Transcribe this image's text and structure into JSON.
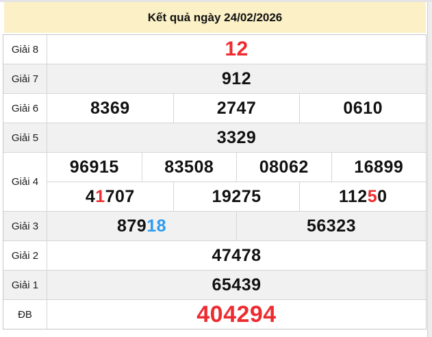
{
  "page": {
    "title": "Kết quả ngày 24/02/2026"
  },
  "colors": {
    "highlight_red": "#ed2c30",
    "highlight_blue": "#2d9bf0",
    "header_bg": "#fbf0c6",
    "alt_row_bg": "#f1f1f1",
    "row_bg": "#ffffff",
    "border_outer": "#c6c6c6",
    "border_inner": "#d5d5d5",
    "number_color": "#111111"
  },
  "results_table": {
    "rows": [
      {
        "label": "Giải 8",
        "size": "lg",
        "lines": [
          [
            [
              {
                "text": "12",
                "color": "highlight_red"
              }
            ]
          ]
        ]
      },
      {
        "label": "Giải 7",
        "lines": [
          [
            [
              {
                "text": "912"
              }
            ]
          ]
        ]
      },
      {
        "label": "Giải 6",
        "lines": [
          [
            [
              {
                "text": "8369"
              }
            ],
            [
              {
                "text": "2747"
              }
            ],
            [
              {
                "text": "0610"
              }
            ]
          ]
        ]
      },
      {
        "label": "Giải 5",
        "lines": [
          [
            [
              {
                "text": "3329"
              }
            ]
          ]
        ]
      },
      {
        "label": "Giải 4",
        "lines": [
          [
            [
              {
                "text": "96915"
              }
            ],
            [
              {
                "text": "83508"
              }
            ],
            [
              {
                "text": "08062"
              }
            ],
            [
              {
                "text": "16899"
              }
            ]
          ],
          [
            [
              {
                "text": "4"
              },
              {
                "text": "1",
                "color": "highlight_red"
              },
              {
                "text": "707"
              }
            ],
            [
              {
                "text": "19275"
              }
            ],
            [
              {
                "text": "112"
              },
              {
                "text": "5",
                "color": "highlight_red"
              },
              {
                "text": "0"
              }
            ]
          ]
        ]
      },
      {
        "label": "Giải 3",
        "lines": [
          [
            [
              {
                "text": "879"
              },
              {
                "text": "18",
                "color": "highlight_blue"
              }
            ],
            [
              {
                "text": "56323"
              }
            ]
          ]
        ]
      },
      {
        "label": "Giải 2",
        "lines": [
          [
            [
              {
                "text": "47478"
              }
            ]
          ]
        ]
      },
      {
        "label": "Giải 1",
        "lines": [
          [
            [
              {
                "text": "65439"
              }
            ]
          ]
        ]
      },
      {
        "label": "ĐB",
        "size": "xxl",
        "lines": [
          [
            [
              {
                "text": "404294",
                "color": "highlight_red"
              }
            ]
          ]
        ]
      }
    ]
  }
}
